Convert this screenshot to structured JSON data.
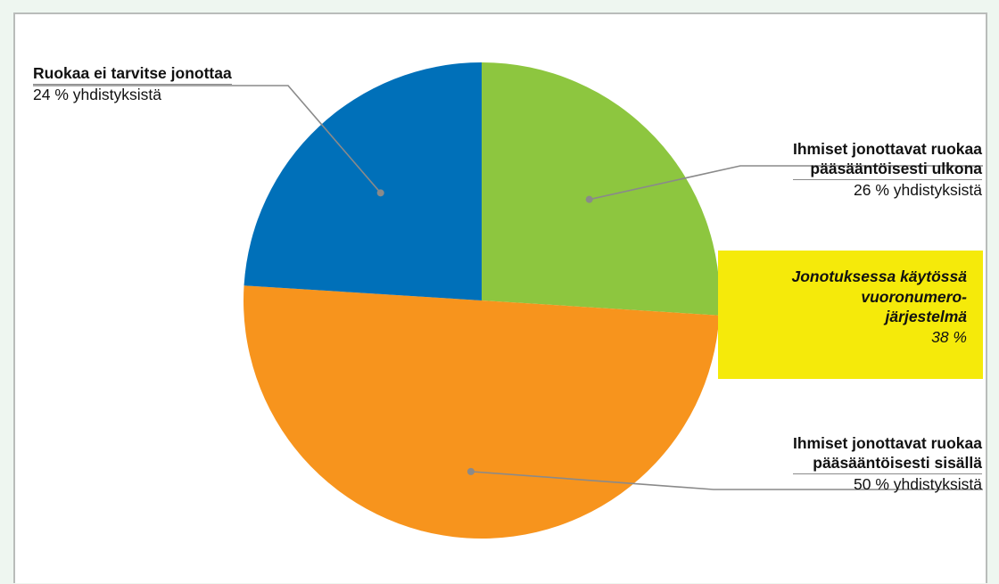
{
  "chart_data": {
    "type": "pie",
    "title": "",
    "slices": [
      {
        "label": "Ihmiset jonottavat ruokaa pääsääntöisesti ulkona",
        "value": 26,
        "color": "#8dc63f"
      },
      {
        "label": "Ihmiset jonottavat ruokaa pääsääntöisesti sisällä",
        "value": 50,
        "color": "#f7941d"
      },
      {
        "label": "Ruokaa ei tarvitse jonottaa",
        "value": 24,
        "color": "#0070b9"
      }
    ],
    "start": "12 o'clock, clockwise"
  },
  "labels": {
    "blue": {
      "title": "Ruokaa ei tarvitse jonottaa",
      "sub": "24 % yhdistyksistä"
    },
    "green": {
      "title_line1": "Ihmiset jonottavat ruokaa",
      "title_line2": "pääsääntöisesti ulkona",
      "sub": "26 % yhdistyksistä"
    },
    "orange": {
      "title_line1": "Ihmiset jonottavat ruokaa",
      "title_line2": "pääsääntöisesti sisällä",
      "sub": "50 % yhdistyksistä"
    }
  },
  "callout": {
    "line1": "Jonotuksessa käytössä",
    "line2": "vuoronumero-",
    "line3": "järjestelmä",
    "value": "38 %",
    "color": "#f5ea0a"
  },
  "colors": {
    "background": "#eef6f0",
    "border": "#b9bcba",
    "leader": "#8a8a8a"
  }
}
